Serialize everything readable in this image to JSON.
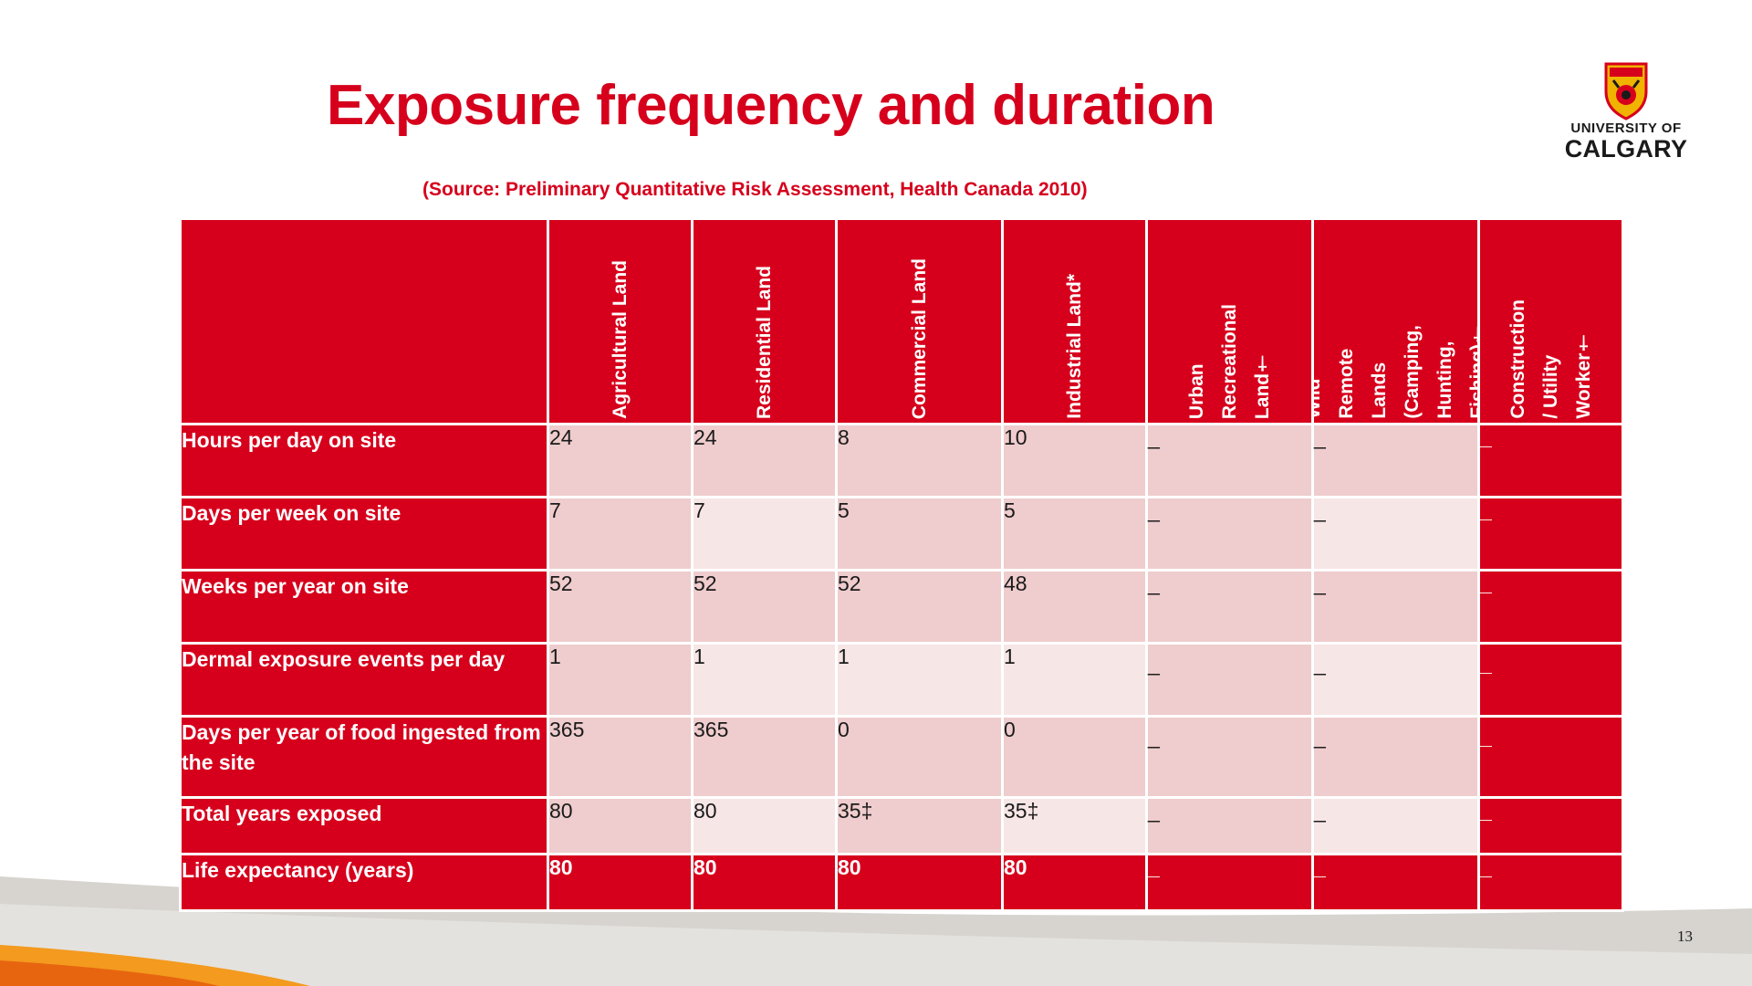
{
  "title": "Exposure frequency and duration",
  "source": "(Source: Preliminary Quantitative Risk Assessment, Health Canada 2010)",
  "logo": {
    "line1": "UNIVERSITY OF",
    "line2": "CALGARY"
  },
  "page_number": "13",
  "colors": {
    "accent": "#d6001c",
    "cell_dark": "#efcccd",
    "cell_light": "#f7e6e6"
  },
  "table": {
    "columns": [
      "Agricultural Land",
      "Residential Land",
      "Commercial Land",
      "Industrial Land*",
      "Urban\nRecreational\nLand†",
      "Wild\nRemote\nLands\n(Camping,\nHunting,\nFishing)†",
      "Construction\n/ Utility\nWorker†"
    ],
    "rows": [
      {
        "label": "Hours per day on site",
        "values": [
          "24",
          "24",
          "8",
          "10",
          "_",
          "_",
          "_"
        ]
      },
      {
        "label": "Days per week on site",
        "values": [
          "7",
          "7",
          "5",
          "5",
          "_",
          "_",
          "_"
        ]
      },
      {
        "label": "Weeks per year on site",
        "values": [
          "52",
          "52",
          "52",
          "48",
          "_",
          "_",
          "_"
        ]
      },
      {
        "label": "Dermal exposure events per day",
        "values": [
          "1",
          "1",
          "1",
          "1",
          "_",
          "_",
          "_"
        ]
      },
      {
        "label": "Days per year of food ingested from the site",
        "values": [
          "365",
          "365",
          "0",
          "0",
          "_",
          "_",
          "_"
        ]
      },
      {
        "label": "Total years exposed",
        "values": [
          "80",
          "80",
          "35‡",
          "35‡",
          "_",
          "_",
          "_"
        ]
      },
      {
        "label": "Life expectancy (years)",
        "values": [
          "80",
          "80",
          "80",
          "80",
          "_",
          "_",
          "_"
        ]
      }
    ]
  }
}
